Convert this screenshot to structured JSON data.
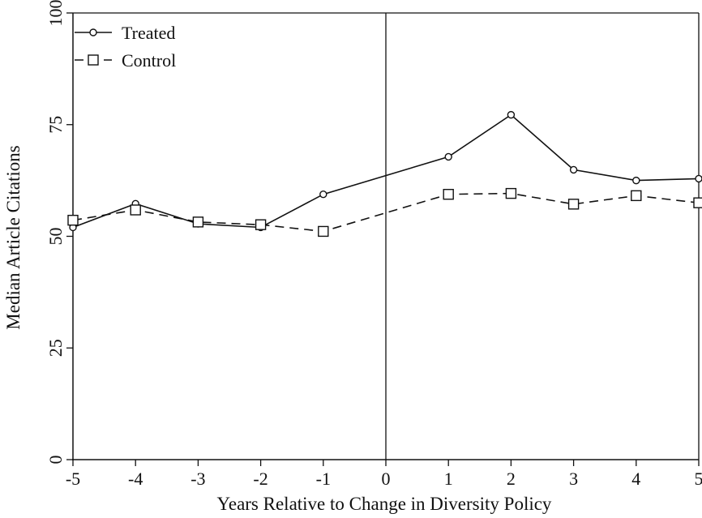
{
  "chart_data": {
    "type": "line",
    "title": "",
    "xlabel": "Years Relative to Change in Diversity Policy",
    "ylabel": "Median Article Citations",
    "x": [
      -5,
      -4,
      -3,
      -2,
      -1,
      0,
      1,
      2,
      3,
      4,
      5
    ],
    "xticks": [
      "-5",
      "-4",
      "-3",
      "-2",
      "-1",
      "0",
      "1",
      "2",
      "3",
      "4",
      "5"
    ],
    "yticks": [
      "0",
      "25",
      "50",
      "75",
      "100"
    ],
    "ylim": [
      0,
      100
    ],
    "xlim": [
      -5,
      5
    ],
    "grid": false,
    "legend": "top-left",
    "reference_line_x": 0,
    "series": [
      {
        "name": "Treated",
        "marker": "circle",
        "dash": "solid",
        "color": "#111111",
        "x": [
          -5,
          -4,
          -3,
          -2,
          -1,
          1,
          2,
          3,
          4,
          5
        ],
        "values": [
          52.0,
          57.3,
          52.8,
          52.0,
          59.4,
          67.8,
          77.2,
          64.9,
          62.5,
          62.9
        ]
      },
      {
        "name": "Control",
        "marker": "square",
        "dash": "dashed",
        "color": "#111111",
        "x": [
          -5,
          -4,
          -3,
          -2,
          -1,
          1,
          2,
          3,
          4,
          5
        ],
        "values": [
          53.6,
          55.9,
          53.2,
          52.6,
          51.1,
          59.4,
          59.6,
          57.2,
          59.1,
          57.5
        ]
      }
    ]
  }
}
